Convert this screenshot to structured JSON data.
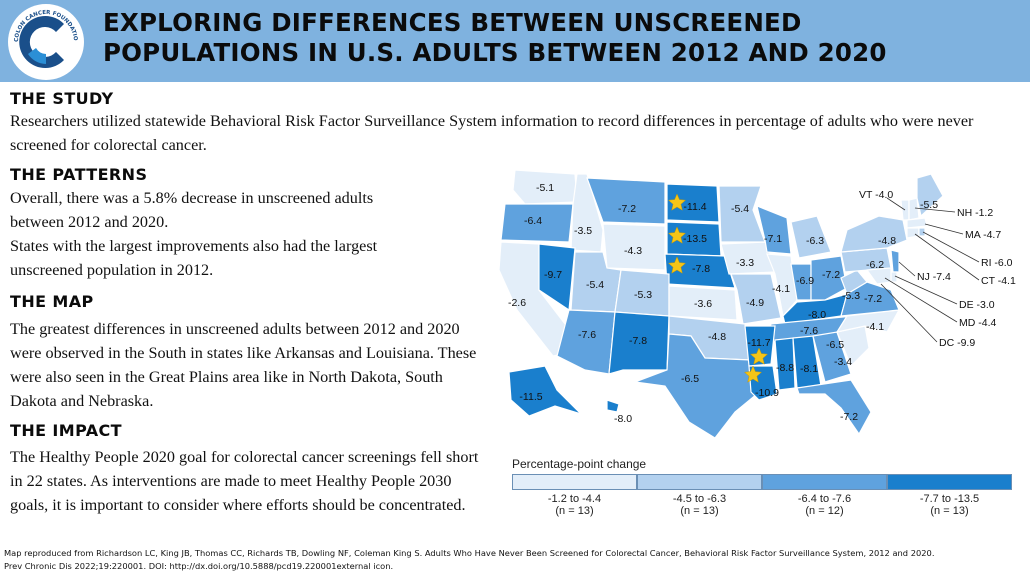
{
  "header": {
    "logo_text": "COLON CANCER FOUNDATION",
    "title_line1": "EXPLORING DIFFERENCES BETWEEN UNSCREENED",
    "title_line2": "POPULATIONS IN U.S. ADULTS BETWEEN 2012 AND 2020"
  },
  "sections": {
    "study": {
      "heading": "THE STUDY",
      "text": "Researchers utilized statewide Behavioral Risk Factor Surveillance System information to record differences in percentage of adults who were never screened for colorectal cancer."
    },
    "patterns": {
      "heading": "THE PATTERNS",
      "text1": "Overall, there was a 5.8% decrease in unscreened adults between 2012 and 2020.",
      "text2": "States with the largest improvements also had the largest unscreened population in 2012."
    },
    "map": {
      "heading": "THE MAP",
      "text": "The greatest differences in unscreened adults between 2012 and 2020 were observed in the South in states like Arkansas and Louisiana. These were also seen in the Great Plains area like in North Dakota, South Dakota and Nebraska."
    },
    "impact": {
      "heading": "THE IMPACT",
      "text": "The Healthy People 2020 goal for colorectal cancer screenings fell short in 22 states. As interventions are made to meet Healthy People 2030 goals, it is important to consider where efforts should be concentrated."
    }
  },
  "map_figure": {
    "legend_title": "Percentage-point change",
    "legend": [
      {
        "range": "-1.2 to -4.4",
        "n": "(n = 13)",
        "color": "#e3eef9"
      },
      {
        "range": "-4.5 to -6.3",
        "n": "(n = 13)",
        "color": "#b3d1ef"
      },
      {
        "range": "-6.4 to -7.6",
        "n": "(n = 12)",
        "color": "#5fa2de"
      },
      {
        "range": "-7.7 to -13.5",
        "n": "(n = 13)",
        "color": "#1a7fcd"
      }
    ],
    "state_labels": [
      {
        "state": "WA",
        "value": "-5.1"
      },
      {
        "state": "OR",
        "value": "-6.4"
      },
      {
        "state": "ID",
        "value": "-3.5"
      },
      {
        "state": "MT",
        "value": "-7.2"
      },
      {
        "state": "ND",
        "value": "-11.4"
      },
      {
        "state": "MN",
        "value": "-5.4"
      },
      {
        "state": "SD",
        "value": "-13.5"
      },
      {
        "state": "WY",
        "value": "-4.3"
      },
      {
        "state": "NE",
        "value": "-7.8"
      },
      {
        "state": "NV",
        "value": "-9.7"
      },
      {
        "state": "CA",
        "value": "-2.6"
      },
      {
        "state": "UT",
        "value": "-5.4"
      },
      {
        "state": "CO",
        "value": "-5.3"
      },
      {
        "state": "KS",
        "value": "-3.6"
      },
      {
        "state": "AZ",
        "value": "-7.6"
      },
      {
        "state": "NM",
        "value": "-7.8"
      },
      {
        "state": "TX",
        "value": "-6.5"
      },
      {
        "state": "OK",
        "value": "-4.8"
      },
      {
        "state": "IA",
        "value": "-3.3"
      },
      {
        "state": "MO",
        "value": "-4.9"
      },
      {
        "state": "WI",
        "value": "-7.1"
      },
      {
        "state": "IL",
        "value": "-4.1"
      },
      {
        "state": "MI",
        "value": "-6.3"
      },
      {
        "state": "IN",
        "value": "-6.9"
      },
      {
        "state": "OH",
        "value": "-7.2"
      },
      {
        "state": "KY",
        "value": "-8.0"
      },
      {
        "state": "TN",
        "value": "-7.6"
      },
      {
        "state": "AR",
        "value": "-11.7"
      },
      {
        "state": "MS",
        "value": "-8.8"
      },
      {
        "state": "AL",
        "value": "-8.1"
      },
      {
        "state": "LA",
        "value": "-10.9"
      },
      {
        "state": "GA",
        "value": "-6.5"
      },
      {
        "state": "SC",
        "value": "-3.4"
      },
      {
        "state": "NC",
        "value": "-4.1"
      },
      {
        "state": "FL",
        "value": "-7.2"
      },
      {
        "state": "PA",
        "value": "-6.2"
      },
      {
        "state": "NY",
        "value": "-4.8"
      },
      {
        "state": "WV",
        "value": "-5.3"
      },
      {
        "state": "VA",
        "value": "-7.2"
      },
      {
        "state": "ME",
        "value": "-5.5"
      },
      {
        "state": "AK",
        "value": "-11.5"
      },
      {
        "state": "HI",
        "value": "-8.0"
      },
      {
        "state": "VT",
        "value": "VT -4.0"
      },
      {
        "state": "NH",
        "value": "NH -1.2"
      },
      {
        "state": "MA",
        "value": "MA -4.7"
      },
      {
        "state": "RI",
        "value": "RI -6.0"
      },
      {
        "state": "CT",
        "value": "CT -4.1"
      },
      {
        "state": "NJ",
        "value": "NJ -7.4"
      },
      {
        "state": "DE",
        "value": "DE -3.0"
      },
      {
        "state": "MD",
        "value": "MD -4.4"
      },
      {
        "state": "DC",
        "value": "DC -9.9"
      }
    ]
  },
  "citation_line1": "Map reproduced from Richardson LC, King JB, Thomas CC, Richards TB, Dowling NF, Coleman King S. Adults Who Have Never Been Screened for Colorectal Cancer, Behavioral Risk Factor Surveillance System, 2012 and 2020.",
  "citation_line2": "Prev Chronic Dis 2022;19:220001. DOI: http://dx.doi.org/10.5888/pcd19.220001external icon."
}
